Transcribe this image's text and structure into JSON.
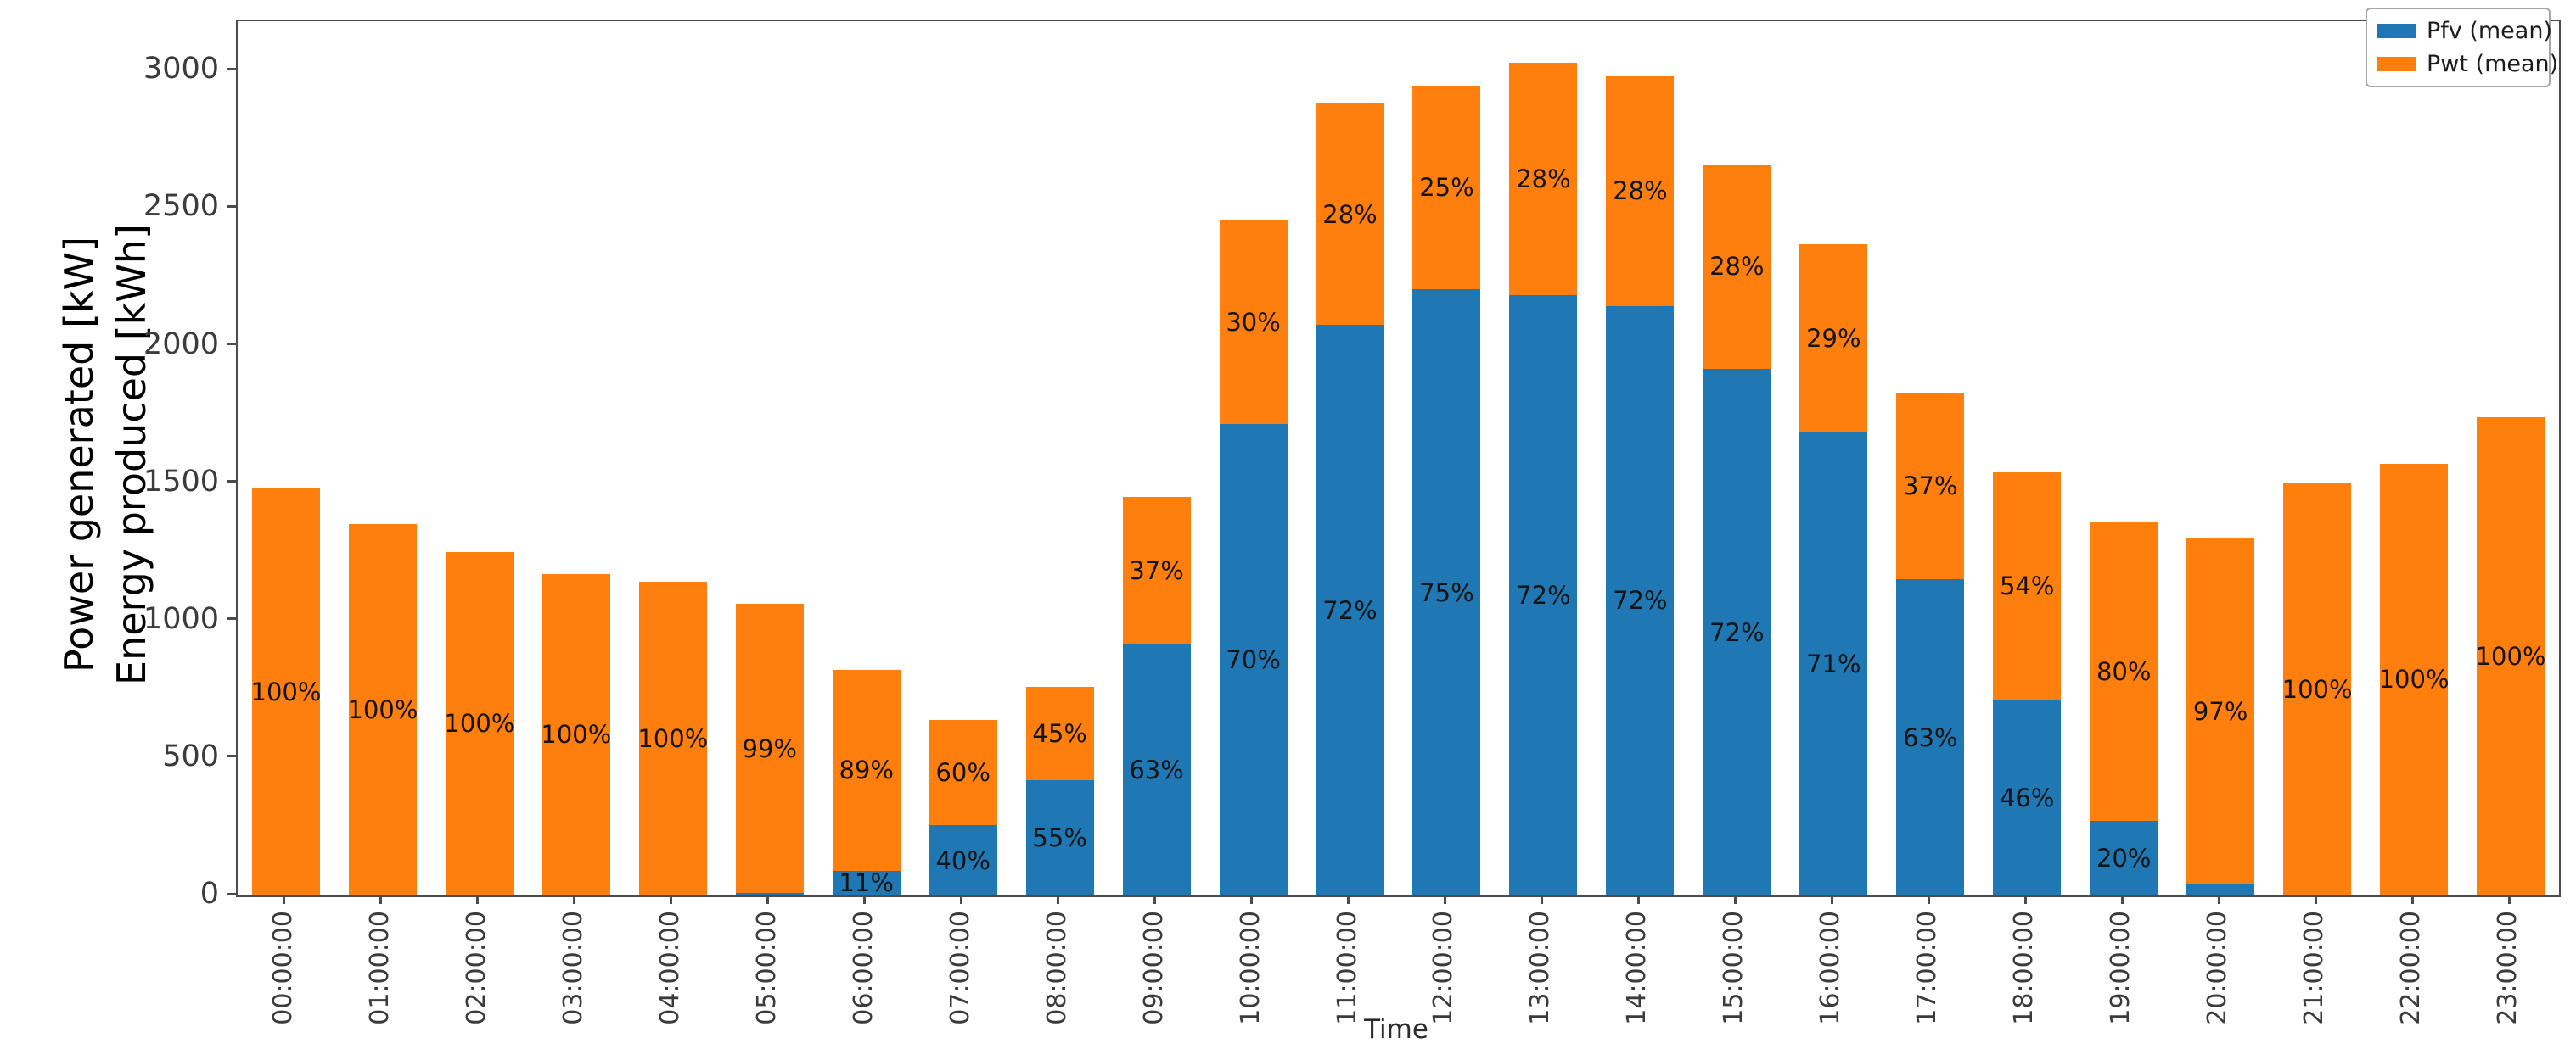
{
  "chart_data": {
    "type": "bar",
    "stacked": true,
    "xlabel": "Time",
    "ylabel_line1": "Power generated [kW]",
    "ylabel_line2": "Energy produced [kWh]",
    "ylim": [
      0,
      3180
    ],
    "yticks": [
      0,
      500,
      1000,
      1500,
      2000,
      2500,
      3000
    ],
    "grid": false,
    "legend_position": "upper right",
    "categories": [
      "00:00:00",
      "01:00:00",
      "02:00:00",
      "03:00:00",
      "04:00:00",
      "05:00:00",
      "06:00:00",
      "07:00:00",
      "08:00:00",
      "09:00:00",
      "10:00:00",
      "11:00:00",
      "12:00:00",
      "13:00:00",
      "14:00:00",
      "15:00:00",
      "16:00:00",
      "17:00:00",
      "18:00:00",
      "19:00:00",
      "20:00:00",
      "21:00:00",
      "22:00:00",
      "23:00:00"
    ],
    "series": [
      {
        "name": "Pfv (mean)",
        "color": "#1f77b4",
        "values": [
          0,
          0,
          0,
          0,
          0,
          10,
          90,
          255,
          420,
          915,
          1715,
          2075,
          2205,
          2185,
          2145,
          1915,
          1685,
          1150,
          710,
          270,
          40,
          0,
          0,
          0
        ]
      },
      {
        "name": "Pwt (mean)",
        "color": "#ff7f0e",
        "values": [
          1480,
          1350,
          1250,
          1170,
          1140,
          1050,
          730,
          385,
          340,
          535,
          740,
          805,
          740,
          845,
          835,
          745,
          685,
          680,
          830,
          1090,
          1260,
          1500,
          1570,
          1740
        ]
      }
    ],
    "bar_labels": {
      "pfv": [
        "",
        "",
        "",
        "",
        "",
        "",
        "11%",
        "40%",
        "55%",
        "63%",
        "70%",
        "72%",
        "75%",
        "72%",
        "72%",
        "72%",
        "71%",
        "63%",
        "46%",
        "20%",
        "",
        "",
        "",
        ""
      ],
      "pwt": [
        "100%",
        "100%",
        "100%",
        "100%",
        "100%",
        "99%",
        "89%",
        "60%",
        "45%",
        "37%",
        "30%",
        "28%",
        "25%",
        "28%",
        "28%",
        "28%",
        "29%",
        "37%",
        "54%",
        "80%",
        "97%",
        "100%",
        "100%",
        "100%"
      ]
    },
    "colors": {
      "pfv": "#1f77b4",
      "pwt": "#ff7f0e",
      "label_text": "#141414",
      "axis": "#4b4b4b"
    }
  }
}
